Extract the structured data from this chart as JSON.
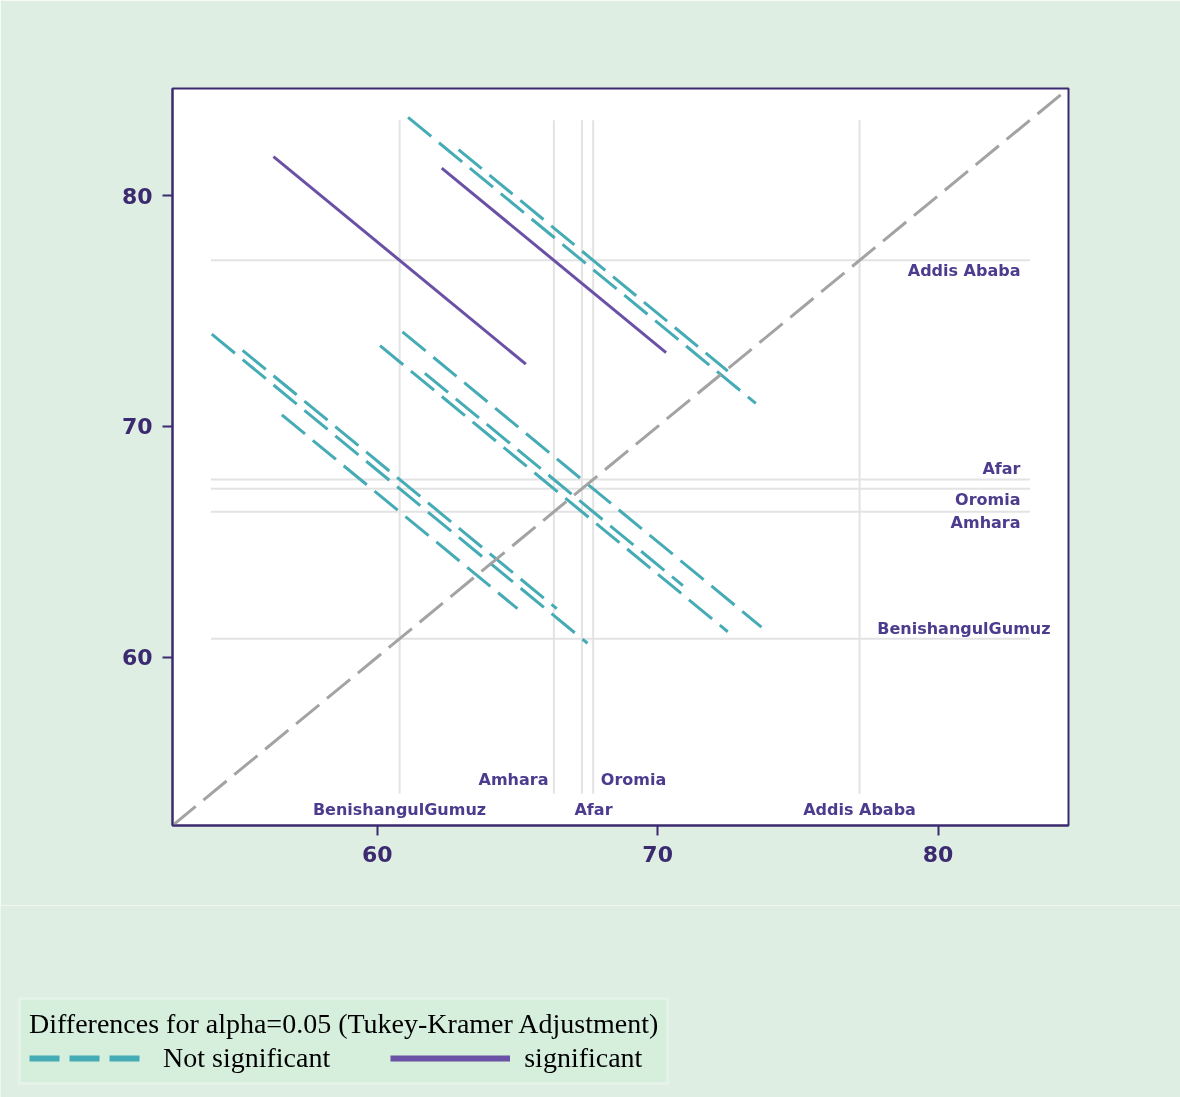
{
  "chart_data": {
    "type": "line",
    "legend_title": "Differences for alpha=0.05 (Tukey-Kramer Adjustment)",
    "legend": "bottom",
    "xlim": [
      52.7,
      84.65
    ],
    "ylim": [
      52.7,
      84.65
    ],
    "xticks": [
      60,
      70,
      80
    ],
    "yticks": [
      60,
      70,
      80
    ],
    "series": [
      {
        "name": "Not significant",
        "color": "#45abb5",
        "line_style": "dashed",
        "x": [
          61.1,
          73.5,
          null,
          62.9,
          72.5,
          null,
          56.6,
          65.0,
          null,
          54.1,
          67.5,
          null,
          55.2,
          66.4,
          null,
          60.1,
          72.5,
          null,
          61.7,
          70.9,
          null,
          60.9,
          73.7
        ],
        "values": [
          83.4,
          71.0,
          null,
          82.0,
          72.4,
          null,
          70.5,
          62.1,
          null,
          74.0,
          60.6,
          null,
          73.3,
          62.1,
          null,
          73.5,
          61.1,
          null,
          72.3,
          63.1,
          null,
          74.1,
          61.3
        ]
      },
      {
        "name": "significant",
        "color": "#6a51a6",
        "line_style": "solid",
        "x": [
          56.3,
          65.3,
          null,
          62.3,
          70.3
        ],
        "values": [
          81.7,
          72.7,
          null,
          81.2,
          73.2
        ]
      },
      {
        "color": "#a3a3a3",
        "line_style": "dashed",
        "x": [
          52.7,
          84.65
        ],
        "values": [
          52.7,
          84.65
        ]
      }
    ],
    "ref_lines": [
      {
        "axis": "x",
        "value": 60.8,
        "label": "BenishangulGumuz",
        "color": "#e3e3e3"
      },
      {
        "axis": "x",
        "value": 67.7,
        "label": "Afar",
        "color": "#e3e3e3"
      },
      {
        "axis": "x",
        "value": 66.3,
        "label": "Amhara",
        "color": "#e3e3e3"
      },
      {
        "axis": "x",
        "value": 67.3,
        "label": "Oromia",
        "color": "#e3e3e3"
      },
      {
        "axis": "x",
        "value": 77.2,
        "label": "Addis Ababa",
        "color": "#e3e3e3"
      },
      {
        "axis": "y",
        "value": 77.2,
        "label": "Addis Ababa",
        "color": "#e3e3e3"
      },
      {
        "axis": "y",
        "value": 67.7,
        "label": "Afar",
        "color": "#e3e3e3"
      },
      {
        "axis": "y",
        "value": 67.3,
        "label": "Oromia",
        "color": "#e3e3e3"
      },
      {
        "axis": "y",
        "value": 66.3,
        "label": "Amhara",
        "color": "#e3e3e3"
      },
      {
        "axis": "y",
        "value": 60.8,
        "label": "BenishangulGumuz",
        "color": "#e3e3e3"
      }
    ]
  }
}
